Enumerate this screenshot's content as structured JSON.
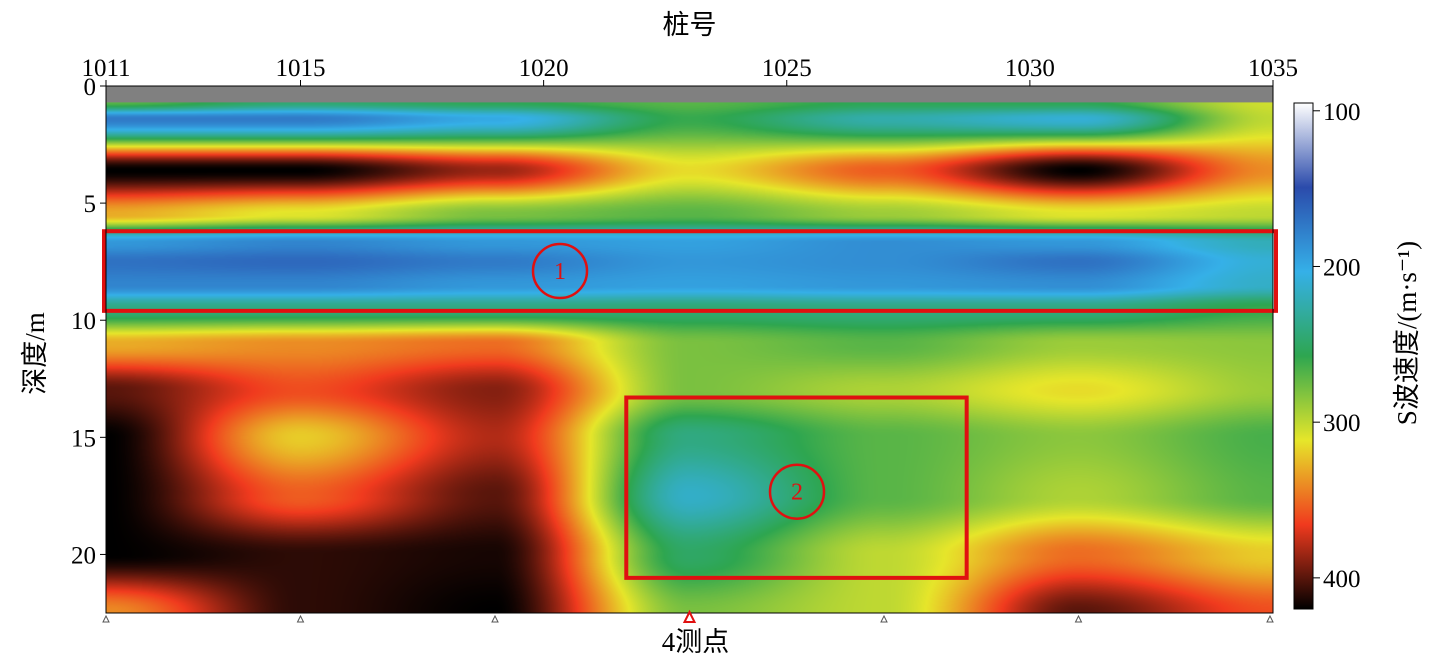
{
  "chart_data": {
    "type": "heatmap",
    "xlabel": "桩号",
    "ylabel": "深度/m",
    "colorbar_label": "S波速度/(m·s⁻¹)",
    "xlim": [
      1011,
      1035
    ],
    "ylim": [
      0,
      22.5
    ],
    "x_ticks": [
      1011,
      1015,
      1020,
      1025,
      1030,
      1035
    ],
    "y_ticks": [
      0,
      5,
      10,
      15,
      20
    ],
    "colorbar_ticks": [
      100,
      200,
      300,
      400
    ],
    "colorbar_range": [
      95,
      420
    ],
    "colorscale": [
      "#ffffff",
      "#2b4bab",
      "#35b0e8",
      "#2ea650",
      "#e6e62a",
      "#f03a1e",
      "#000000"
    ],
    "masked_top_depth": 0.7,
    "masked_color": "#808080",
    "grid": false,
    "velocity_model": {
      "description_free": true,
      "depths": [
        0.7,
        1.4,
        3.6,
        5.5,
        6.7,
        7.5,
        8.5,
        9.5,
        11.0,
        13.0,
        15.0,
        17.5,
        20.0,
        22.5
      ],
      "positions": [
        1011,
        1015,
        1019,
        1023,
        1027,
        1031,
        1035
      ],
      "values": [
        [
          270,
          245,
          255,
          270,
          255,
          255,
          305
        ],
        [
          175,
          175,
          200,
          260,
          225,
          210,
          300
        ],
        [
          420,
          420,
          385,
          315,
          355,
          420,
          340
        ],
        [
          330,
          310,
          280,
          270,
          290,
          310,
          300
        ],
        [
          190,
          180,
          190,
          195,
          185,
          190,
          220
        ],
        [
          170,
          165,
          175,
          190,
          185,
          170,
          210
        ],
        [
          180,
          180,
          190,
          195,
          190,
          185,
          215
        ],
        [
          240,
          240,
          240,
          245,
          240,
          240,
          260
        ],
        [
          330,
          340,
          350,
          280,
          270,
          290,
          285
        ],
        [
          400,
          360,
          390,
          280,
          295,
          315,
          290
        ],
        [
          420,
          320,
          380,
          240,
          270,
          285,
          265
        ],
        [
          420,
          355,
          400,
          215,
          270,
          295,
          270
        ],
        [
          420,
          410,
          415,
          250,
          300,
          350,
          320
        ],
        [
          340,
          410,
          420,
          280,
          300,
          400,
          360
        ]
      ]
    },
    "annotations": [
      {
        "label": "1",
        "box_x": [
          1011,
          1035
        ],
        "box_y": [
          6.2,
          9.6
        ]
      },
      {
        "label": "2",
        "box_x": [
          1021.7,
          1028.7
        ],
        "box_y": [
          13.3,
          21.0
        ]
      }
    ],
    "survey_points": {
      "positions": [
        1011,
        1015,
        1019,
        1023,
        1027,
        1031,
        1035
      ],
      "highlight_index": 3,
      "label": "4测点"
    }
  }
}
